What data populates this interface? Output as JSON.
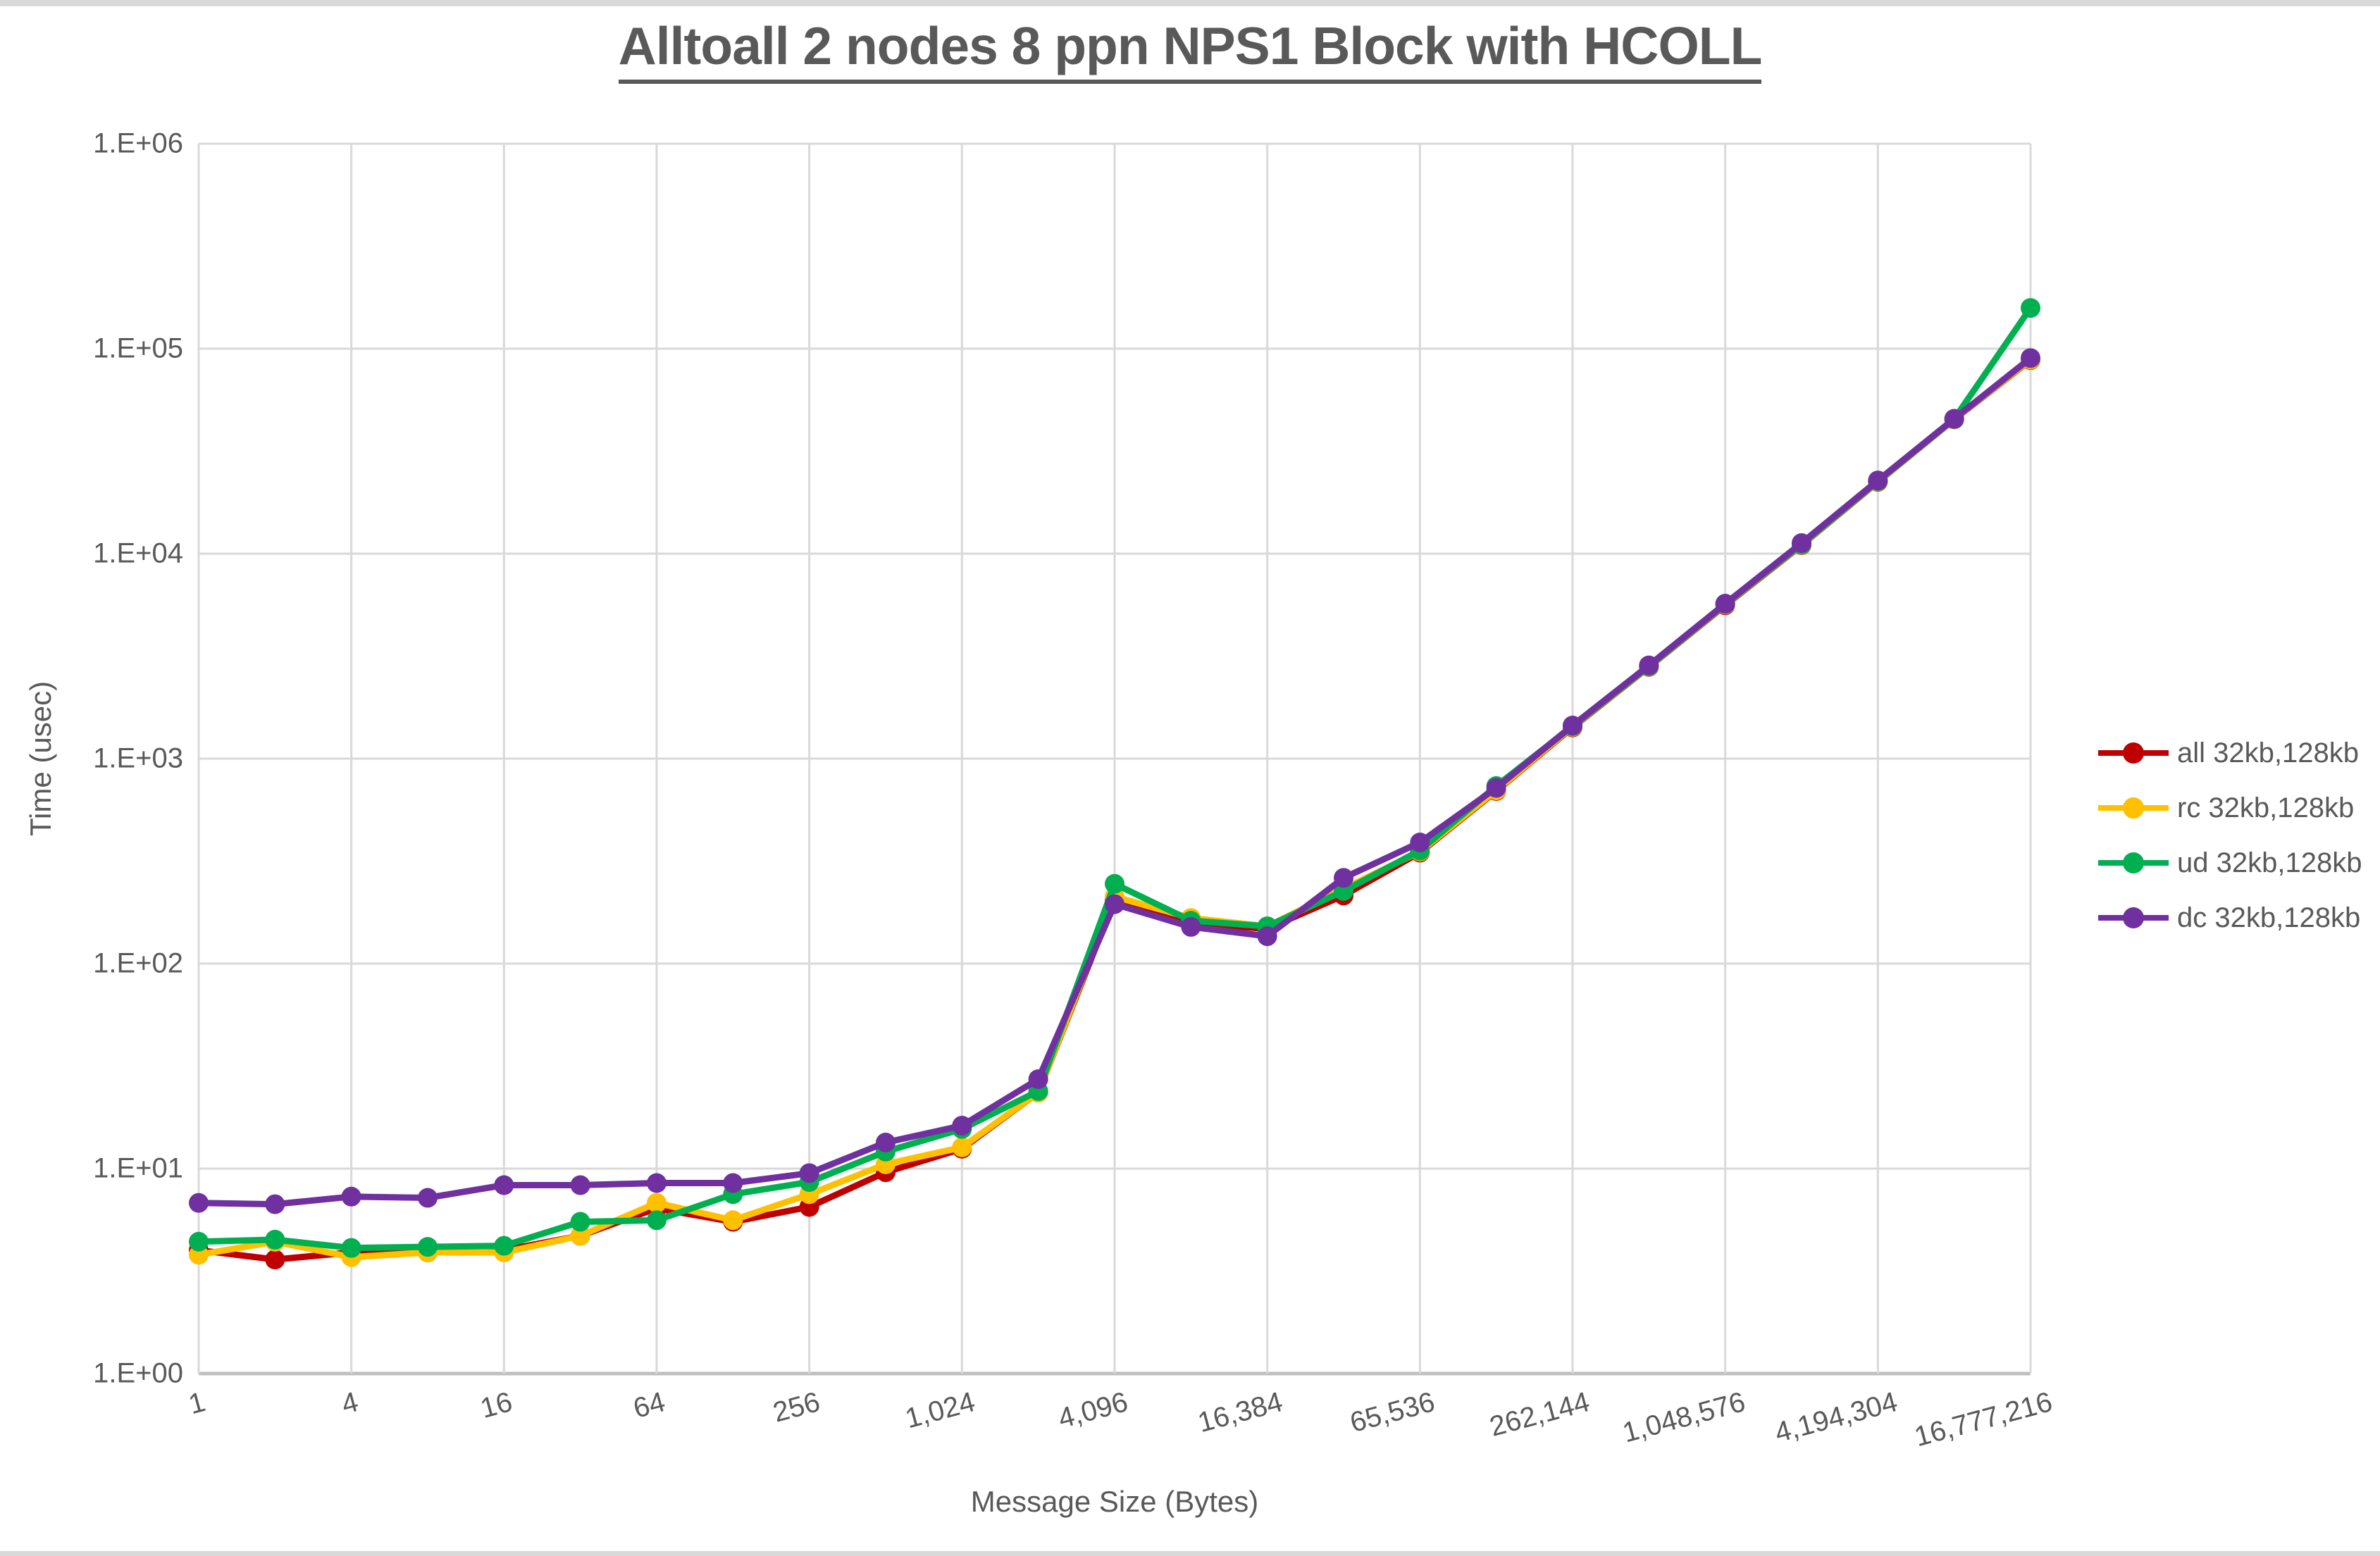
{
  "title": "Alltoall 2 nodes 8 ppn NPS1 Block with HCOLL",
  "colors": {
    "all": "#c00000",
    "rc": "#ffc000",
    "ud": "#00b050",
    "dc": "#7030a0",
    "gridline": "#d9d9d9",
    "axis_line": "#bfbfbf",
    "text": "#595959"
  },
  "chart_data": {
    "type": "line",
    "title": "Alltoall 2 nodes 8 ppn NPS1 Block with HCOLL",
    "xlabel": "Message Size (Bytes)",
    "ylabel": "Time (usec)",
    "x_scale": "log2",
    "y_scale": "log10",
    "ylim": [
      1,
      1000000
    ],
    "xlim": [
      1,
      16777216
    ],
    "grid": true,
    "legend_position": "right",
    "ytick_labels": [
      "1.E+00",
      "1.E+01",
      "1.E+02",
      "1.E+03",
      "1.E+04",
      "1.E+05",
      "1.E+06"
    ],
    "xtick_values": [
      1,
      4,
      16,
      64,
      256,
      1024,
      4096,
      16384,
      65536,
      262144,
      1048576,
      4194304,
      16777216
    ],
    "xtick_labels": [
      "1",
      "4",
      "16",
      "64",
      "256",
      "1,024",
      "4,096",
      "16,384",
      "65,536",
      "262,144",
      "1,048,576",
      "4,194,304",
      "16,777,216"
    ],
    "x": [
      1,
      2,
      4,
      8,
      16,
      32,
      64,
      128,
      256,
      512,
      1024,
      2048,
      4096,
      8192,
      16384,
      32768,
      65536,
      131072,
      262144,
      524288,
      1048576,
      2097152,
      4194304,
      8388608,
      16777216
    ],
    "series": [
      {
        "name": "all 32kb,128kb",
        "key": "all",
        "color": "#c00000",
        "values": [
          4.0,
          3.6,
          3.9,
          3.9,
          4.0,
          4.7,
          6.4,
          5.5,
          6.5,
          9.6,
          12.5,
          23.5,
          205,
          157,
          148,
          215,
          348,
          695,
          1420,
          2800,
          5600,
          11000,
          22400,
          45200,
          88000
        ]
      },
      {
        "name": "rc 32kb,128kb",
        "key": "rc",
        "color": "#ffc000",
        "values": [
          3.8,
          4.4,
          3.7,
          3.9,
          3.9,
          4.7,
          6.8,
          5.6,
          7.5,
          10.5,
          12.7,
          23.5,
          212,
          167,
          152,
          232,
          352,
          700,
          1430,
          2810,
          5650,
          11050,
          22500,
          45300,
          88500
        ]
      },
      {
        "name": "ud 32kb,128kb",
        "key": "ud",
        "color": "#00b050",
        "values": [
          4.4,
          4.5,
          4.1,
          4.15,
          4.2,
          5.5,
          5.6,
          7.5,
          8.6,
          12.1,
          15.6,
          23.9,
          245,
          162,
          152,
          226,
          356,
          735,
          1440,
          2820,
          5680,
          11100,
          22600,
          45400,
          158000
        ]
      },
      {
        "name": "dc 32kb,128kb",
        "key": "dc",
        "color": "#7030a0",
        "values": [
          6.8,
          6.7,
          7.3,
          7.2,
          8.3,
          8.3,
          8.5,
          8.5,
          9.5,
          13.4,
          16.2,
          27.3,
          195,
          151,
          136,
          262,
          390,
          720,
          1450,
          2850,
          5700,
          11260,
          22750,
          45500,
          90000
        ]
      }
    ]
  }
}
